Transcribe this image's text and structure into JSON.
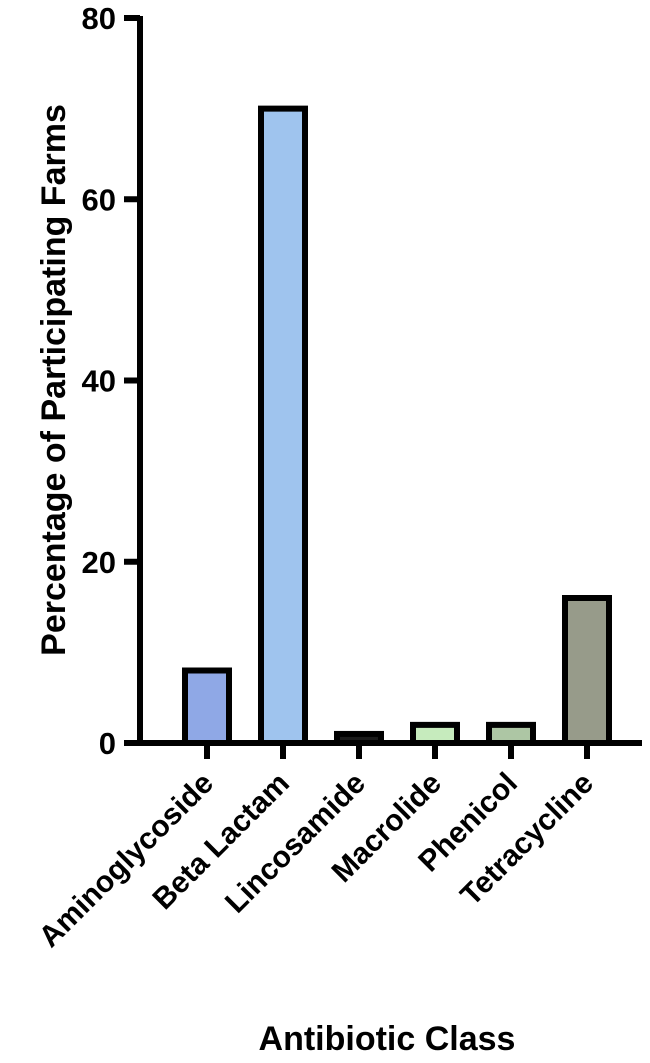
{
  "chart_data": {
    "type": "bar",
    "categories": [
      "Aminoglycoside",
      "Beta Lactam",
      "Lincosamide",
      "Macrolide",
      "Phenicol",
      "Tetracycline"
    ],
    "values": [
      8,
      70,
      1,
      2,
      2,
      16
    ],
    "colors": [
      "#8fa8e6",
      "#9fc4ee",
      "#1a1a1a",
      "#c6ebbd",
      "#adc6a4",
      "#979b8a"
    ],
    "xlabel": "Antibiotic Class",
    "ylabel": "Percentage of Participating Farms",
    "ylim": [
      0,
      80
    ],
    "yticks": [
      0,
      20,
      40,
      60,
      80
    ],
    "grid": false,
    "legend": "none"
  }
}
